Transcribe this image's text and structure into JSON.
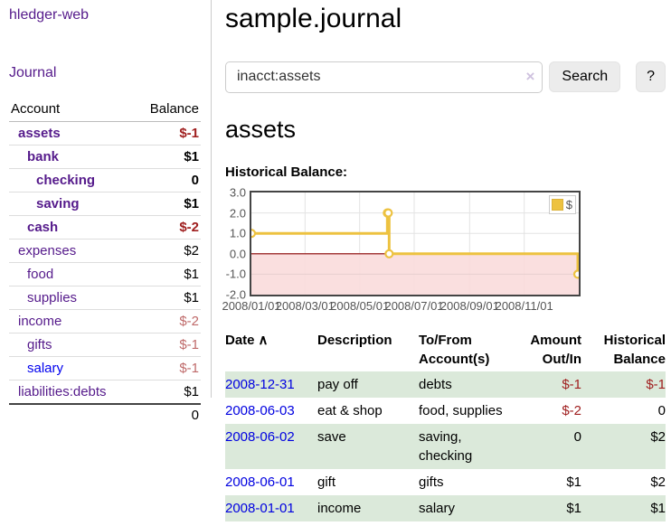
{
  "app_title": "hledger-web",
  "sidebar": {
    "journal_link": "Journal",
    "accounts": {
      "header_account": "Account",
      "header_balance": "Balance",
      "rows": [
        {
          "label": "assets",
          "balance": "$-1",
          "depth": 1,
          "selected": true,
          "balance_style": "v-neg-strong"
        },
        {
          "label": "bank",
          "balance": "$1",
          "depth": 2,
          "selected": true,
          "balance_style": "v-pos-strong"
        },
        {
          "label": "checking",
          "balance": "0",
          "depth": 3,
          "selected": true,
          "balance_style": "v-pos-strong"
        },
        {
          "label": "saving",
          "balance": "$1",
          "depth": 3,
          "selected": true,
          "balance_style": "v-pos-strong"
        },
        {
          "label": "cash",
          "balance": "$-2",
          "depth": 2,
          "selected": true,
          "balance_style": "v-neg-strong"
        },
        {
          "label": "expenses",
          "balance": "$2",
          "depth": 1,
          "selected": false,
          "balance_style": "v-pos"
        },
        {
          "label": "food",
          "balance": "$1",
          "depth": 2,
          "selected": false,
          "balance_style": "v-pos"
        },
        {
          "label": "supplies",
          "balance": "$1",
          "depth": 2,
          "selected": false,
          "balance_style": "v-pos"
        },
        {
          "label": "income",
          "balance": "$-2",
          "depth": 1,
          "selected": false,
          "balance_style": "v-neg"
        },
        {
          "label": "gifts",
          "balance": "$-1",
          "depth": 2,
          "selected": false,
          "balance_style": "v-neg"
        },
        {
          "label": "salary",
          "balance": "$-1",
          "depth": 2,
          "selected": false,
          "balance_style": "v-neg",
          "link_color": "blue"
        },
        {
          "label": "liabilities:debts",
          "balance": "$1",
          "depth": 1,
          "selected": false,
          "balance_style": "v-pos"
        }
      ],
      "total": "0"
    }
  },
  "main": {
    "title": "sample.journal",
    "search": {
      "value": "inacct:assets",
      "clear_icon": "×",
      "search_button": "Search",
      "help_button": "?"
    },
    "account_heading": "assets",
    "chart_title": "Historical Balance:"
  },
  "chart_data": {
    "type": "line",
    "step": true,
    "title": "Historical Balance",
    "legend": {
      "label": "$",
      "position": "top-right",
      "swatch_color": "#edc240"
    },
    "x_start": "2008-01-01",
    "x_end": "2009-01-01",
    "xticks": [
      "2008/01/01",
      "2008/03/01",
      "2008/05/01",
      "2008/07/01",
      "2008/09/01",
      "2008/11/01"
    ],
    "yticks": [
      "3.0",
      "2.0",
      "1.0",
      "0.0",
      "-1.0",
      "-2.0"
    ],
    "ylim": [
      -2,
      3
    ],
    "grid": true,
    "line_color": "#edc240",
    "negative_fill": "#fadcdc",
    "zero_line_color": "#8b0000",
    "series": [
      {
        "name": "$",
        "points": [
          [
            "2008-01-01",
            1
          ],
          [
            "2008-06-01",
            2
          ],
          [
            "2008-06-02",
            2
          ],
          [
            "2008-06-03",
            0
          ],
          [
            "2008-12-31",
            -1
          ]
        ]
      }
    ]
  },
  "register": {
    "headers": {
      "date": "Date",
      "sort_icon": "∧",
      "description": "Description",
      "account": "To/From Account(s)",
      "amount": "Amount Out/In",
      "balance": "Historical Balance"
    },
    "rows": [
      {
        "date": "2008-12-31",
        "description": "pay off",
        "to_from": "debts",
        "amount": "$-1",
        "amount_neg": true,
        "balance": "$-1",
        "balance_neg": true
      },
      {
        "date": "2008-06-03",
        "description": "eat & shop",
        "to_from": "food, supplies",
        "amount": "$-2",
        "amount_neg": true,
        "balance": "0",
        "balance_neg": false
      },
      {
        "date": "2008-06-02",
        "description": "save",
        "to_from": "saving, checking",
        "amount": "0",
        "amount_neg": false,
        "balance": "$2",
        "balance_neg": false
      },
      {
        "date": "2008-06-01",
        "description": "gift",
        "to_from": "gifts",
        "amount": "$1",
        "amount_neg": false,
        "balance": "$2",
        "balance_neg": false
      },
      {
        "date": "2008-01-01",
        "description": "income",
        "to_from": "salary",
        "amount": "$1",
        "amount_neg": false,
        "balance": "$1",
        "balance_neg": false
      }
    ]
  },
  "colors": {
    "accent_purple": "#551A8B",
    "link_blue": "#0000EE",
    "negative_strong": "#a02020",
    "negative_muted": "#bf6a6a",
    "row_stripe_green": "#dbe9da"
  }
}
